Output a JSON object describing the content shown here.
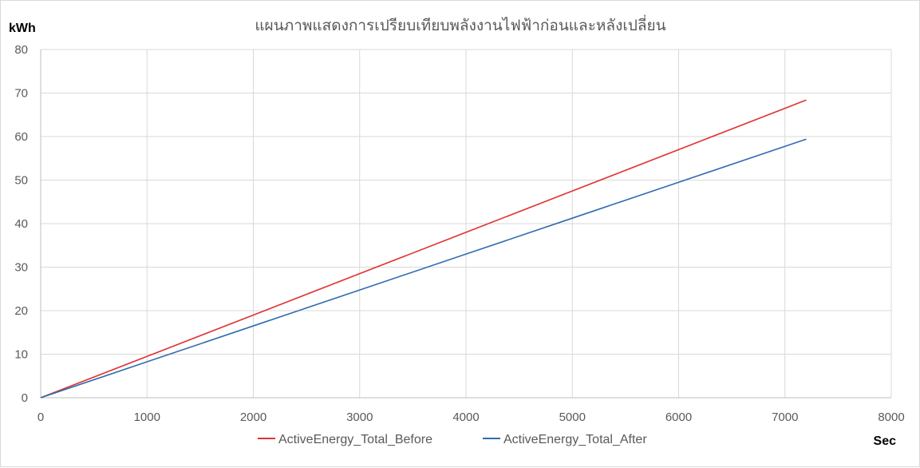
{
  "chart_data": {
    "type": "line",
    "title": "แผนภาพแสดงการเปรียบเทียบพลังงานไฟฟ้าก่อนและหลังเปลี่ยน",
    "ylabel": "kWh",
    "xlabel": "Sec",
    "xlim": [
      0,
      8000
    ],
    "ylim": [
      0,
      80
    ],
    "x_ticks": [
      0,
      1000,
      2000,
      3000,
      4000,
      5000,
      6000,
      7000,
      8000
    ],
    "y_ticks": [
      0,
      10,
      20,
      30,
      40,
      50,
      60,
      70,
      80
    ],
    "grid": true,
    "legend_position": "bottom",
    "series": [
      {
        "name": "ActiveEnergy_Total_Before",
        "color": "#e03030",
        "x": [
          0,
          1000,
          2000,
          3000,
          4000,
          5000,
          6000,
          7000,
          7200
        ],
        "y": [
          0,
          9.5,
          19.0,
          28.5,
          38.0,
          47.5,
          57.0,
          66.5,
          68.4
        ]
      },
      {
        "name": "ActiveEnergy_Total_After",
        "color": "#2e6cb0",
        "x": [
          0,
          1000,
          2000,
          3000,
          4000,
          5000,
          6000,
          7000,
          7200
        ],
        "y": [
          0,
          8.25,
          16.5,
          24.75,
          33.0,
          41.25,
          49.5,
          57.75,
          59.4
        ]
      }
    ]
  }
}
